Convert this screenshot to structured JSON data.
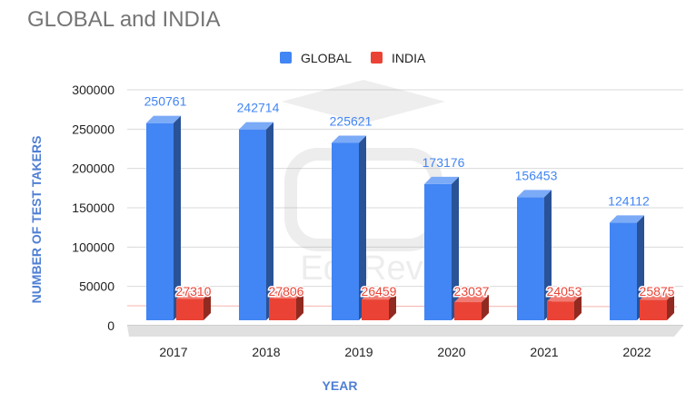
{
  "chart_data": {
    "type": "bar",
    "title": "GLOBAL and INDIA",
    "xlabel": "YEAR",
    "ylabel": "NUMBER OF TEST TAKERS",
    "categories": [
      "2017",
      "2018",
      "2019",
      "2020",
      "2021",
      "2022"
    ],
    "ylim": [
      0,
      300000
    ],
    "yticks": [
      0,
      50000,
      100000,
      150000,
      200000,
      250000,
      300000
    ],
    "ytick_labels": [
      "0",
      "50000",
      "100000",
      "150000",
      "200000",
      "250000",
      "300000"
    ],
    "grid": true,
    "legend_position": "top-center",
    "series": [
      {
        "name": "GLOBAL",
        "color": "#4285f4",
        "values": [
          250761,
          242714,
          225621,
          173176,
          156453,
          124112
        ],
        "labels": [
          "250761",
          "242714",
          "225621",
          "173176",
          "156453",
          "124112"
        ]
      },
      {
        "name": "INDIA",
        "color": "#ea4335",
        "values": [
          27310,
          27806,
          26459,
          23037,
          24053,
          25875
        ],
        "labels": [
          "27310",
          "27806",
          "26459",
          "23037",
          "24053",
          "25875"
        ]
      }
    ]
  },
  "watermark": {
    "text": "EduRev"
  }
}
